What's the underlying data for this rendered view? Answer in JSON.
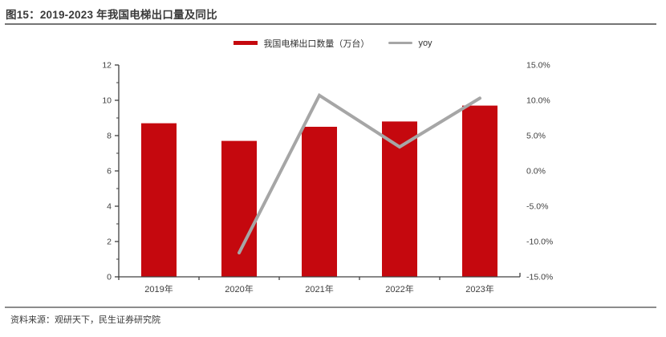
{
  "figure": {
    "title": "图15：2019-2023 年我国电梯出口量及同比",
    "source": "资料来源：观研天下，民生证券研究院"
  },
  "legend": {
    "bar": {
      "label": "我国电梯出口数量（万台）"
    },
    "line": {
      "label": "yoy"
    }
  },
  "colors": {
    "bar": "#C5080E",
    "line": "#A6A6A6",
    "axis": "#404040",
    "divider_top": "#757575",
    "divider_bottom": "#8C8C8C",
    "title_text": "#3A3A3A"
  },
  "chart_data": {
    "type": "bar",
    "combo": "bar+line dual axis",
    "title": "2019-2023 年我国电梯出口量及同比",
    "categories": [
      "2019年",
      "2020年",
      "2021年",
      "2022年",
      "2023年"
    ],
    "series": [
      {
        "name": "我国电梯出口数量（万台）",
        "type": "bar",
        "axis": "left",
        "color": "#C5080E",
        "values": [
          8.7,
          7.7,
          8.5,
          8.8,
          9.7
        ]
      },
      {
        "name": "yoy",
        "type": "line",
        "axis": "right",
        "color": "#A6A6A6",
        "values": [
          null,
          -11.6,
          10.7,
          3.4,
          10.3
        ],
        "unit": "%"
      }
    ],
    "left_axis": {
      "min": 0,
      "max": 12,
      "major_step": 2,
      "minor_step": 1,
      "tick_labels": [
        "0",
        "2",
        "4",
        "6",
        "8",
        "10",
        "12"
      ]
    },
    "right_axis": {
      "min": -15,
      "max": 15,
      "major_step": 5,
      "tick_labels": [
        "15.0%",
        "10.0%",
        "5.0%",
        "0.0%",
        "-5.0%",
        "-10.0%",
        "-15.0%"
      ],
      "format": "percent"
    },
    "grid": false,
    "legend_position": "top-center"
  }
}
